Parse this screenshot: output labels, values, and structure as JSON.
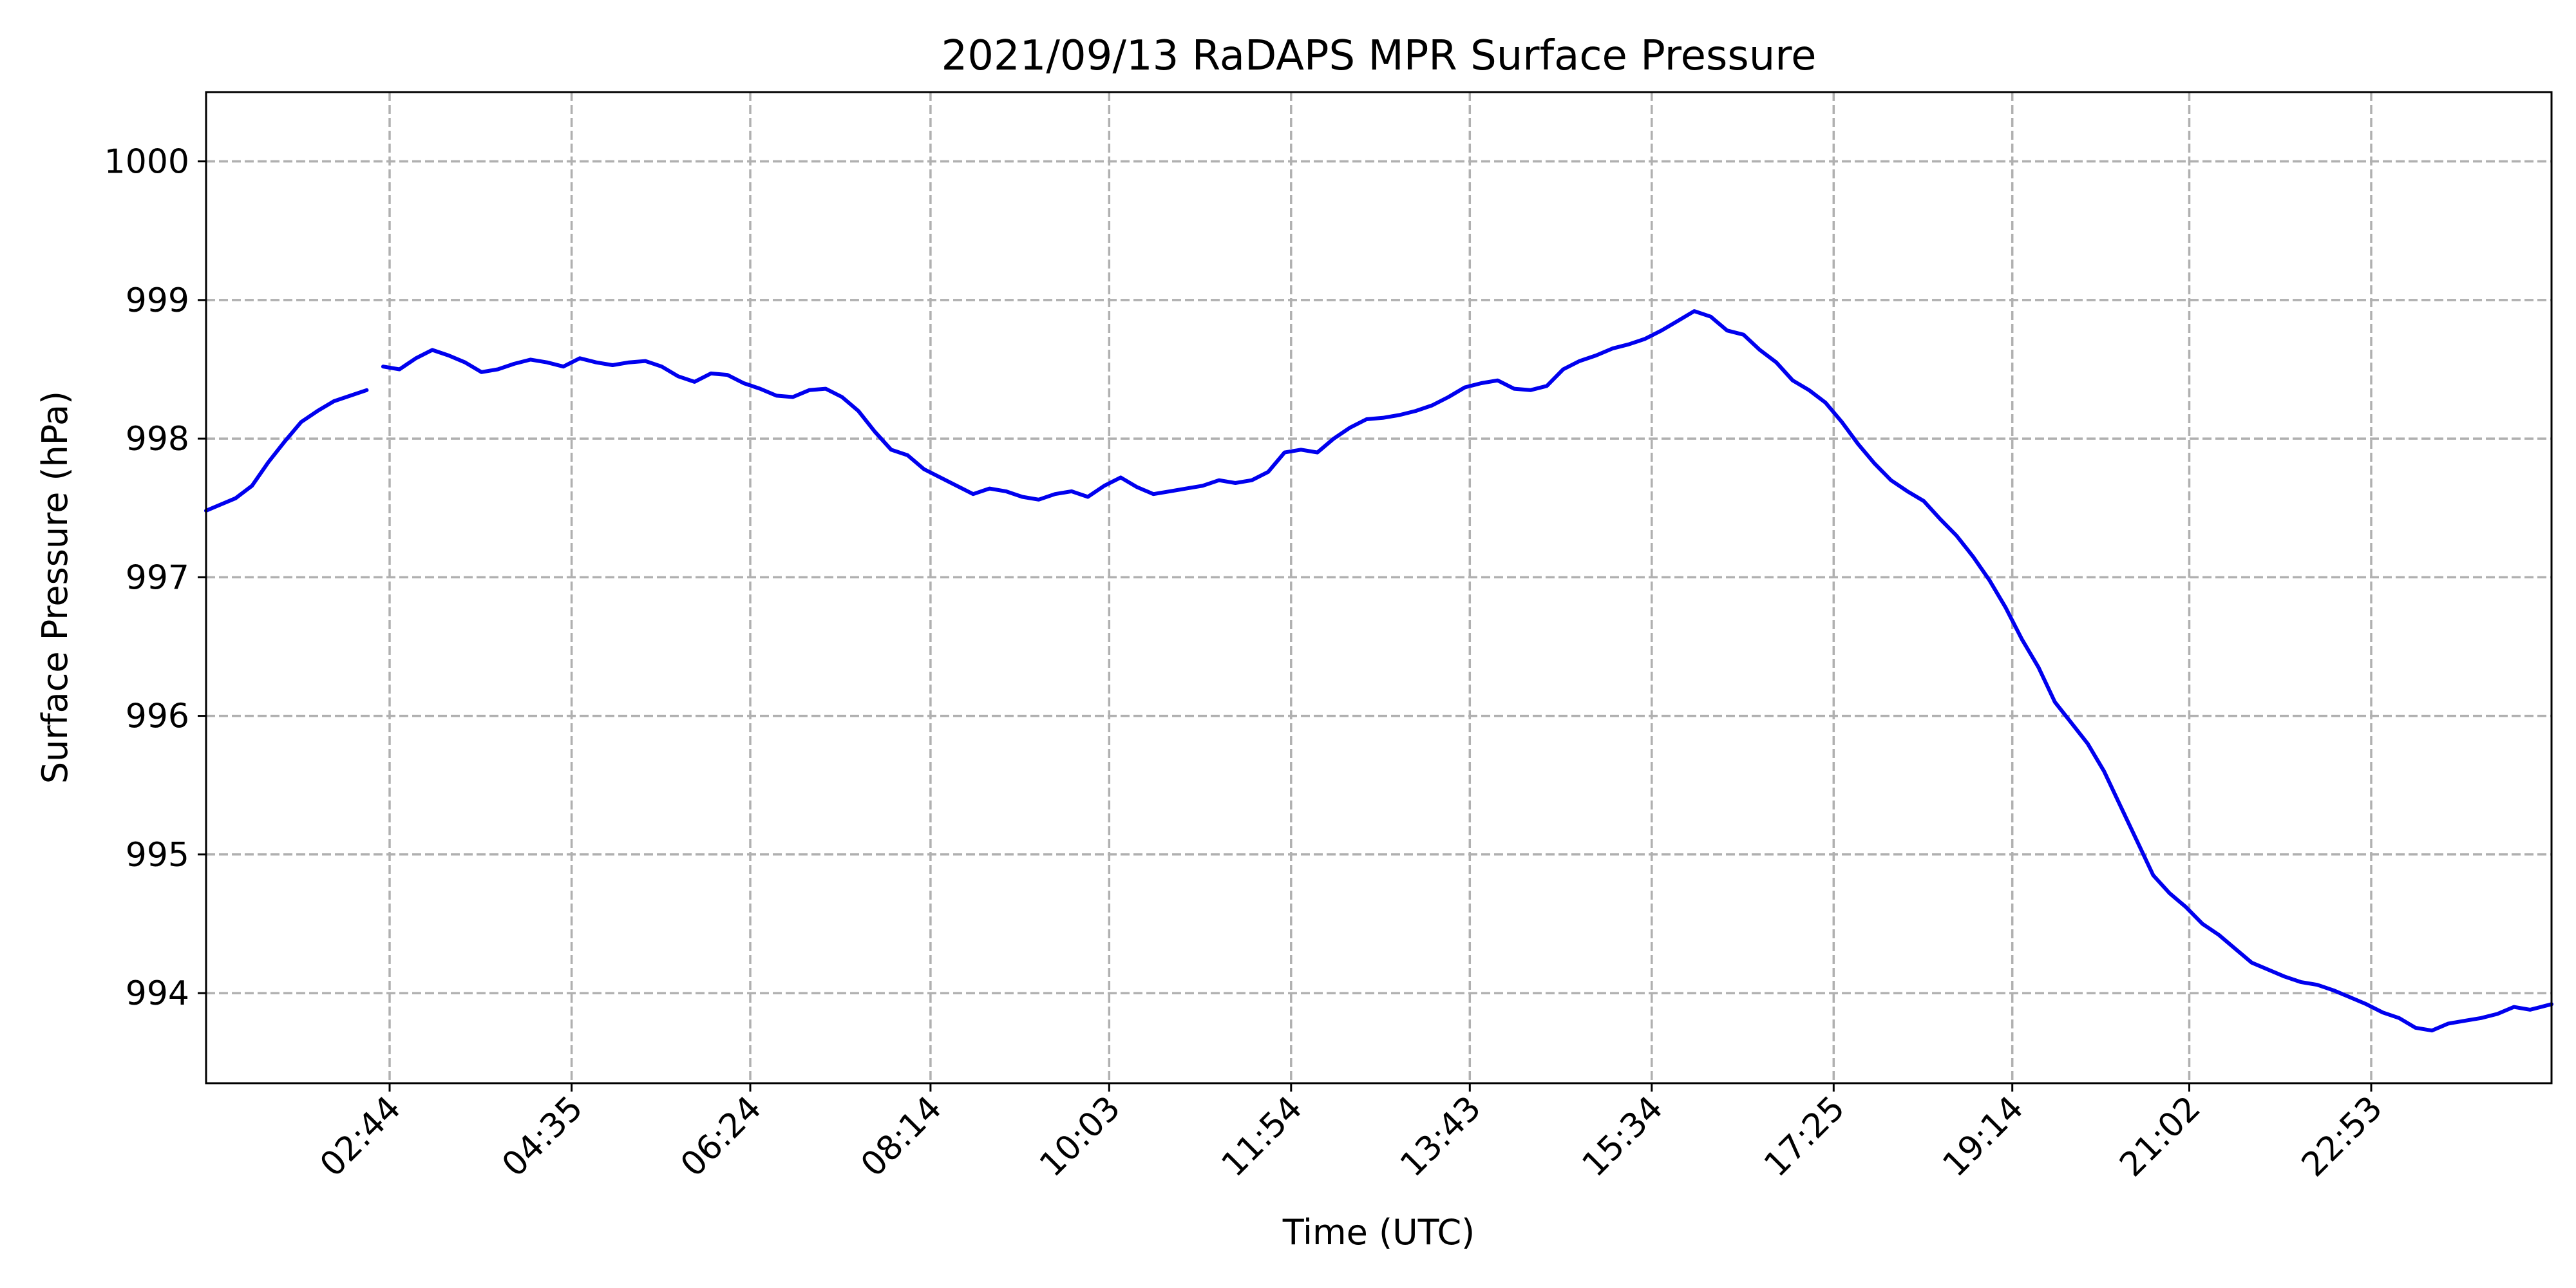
{
  "chart_data": {
    "type": "line",
    "title": "2021/09/13 RaDAPS MPR Surface Pressure",
    "xlabel": "Time (UTC)",
    "ylabel": "Surface Pressure (hPa)",
    "x_unit": "UTC time of day",
    "xlim": [
      "00:52",
      "24:43"
    ],
    "ylim": [
      993.35,
      1000.5
    ],
    "x_ticks": [
      "02:44",
      "04:35",
      "06:24",
      "08:14",
      "10:03",
      "11:54",
      "13:43",
      "15:34",
      "17:25",
      "19:14",
      "21:02",
      "22:53"
    ],
    "y_ticks": [
      994,
      995,
      996,
      997,
      998,
      999,
      1000
    ],
    "grid": true,
    "line_color": "#0000ee",
    "series": [
      {
        "segments": [
          {
            "x": [
              "00:52",
              "01:00",
              "01:10",
              "01:20",
              "01:30",
              "01:40",
              "01:50",
              "02:00",
              "02:10",
              "02:20",
              "02:30"
            ],
            "y": [
              997.48,
              997.52,
              997.57,
              997.66,
              997.83,
              997.98,
              998.12,
              998.2,
              998.27,
              998.31,
              998.35
            ]
          },
          {
            "x": [
              "02:40",
              "02:50",
              "03:00",
              "03:10",
              "03:20",
              "03:30",
              "03:40",
              "03:50",
              "04:00",
              "04:10",
              "04:20",
              "04:30",
              "04:40",
              "04:50",
              "05:00",
              "05:10",
              "05:20",
              "05:30",
              "05:40",
              "05:50",
              "06:00",
              "06:10",
              "06:20",
              "06:30",
              "06:40",
              "06:50",
              "07:00",
              "07:10",
              "07:20",
              "07:30",
              "07:40",
              "07:50",
              "08:00",
              "08:10",
              "08:20",
              "08:30",
              "08:40",
              "08:50",
              "09:00",
              "09:10",
              "09:20",
              "09:30",
              "09:40",
              "09:50",
              "10:00",
              "10:10",
              "10:20",
              "10:30",
              "10:40",
              "10:50",
              "11:00",
              "11:10",
              "11:20",
              "11:30",
              "11:40",
              "11:50",
              "12:00",
              "12:10",
              "12:20",
              "12:30",
              "12:40",
              "12:50",
              "13:00",
              "13:10",
              "13:20",
              "13:30",
              "13:40",
              "13:50",
              "14:00",
              "14:10",
              "14:20",
              "14:30",
              "14:40",
              "14:50",
              "15:00",
              "15:10",
              "15:20",
              "15:30",
              "15:40",
              "15:50",
              "16:00",
              "16:10",
              "16:20",
              "16:30",
              "16:40",
              "16:50",
              "17:00",
              "17:10",
              "17:20",
              "17:30",
              "17:40",
              "17:50",
              "18:00",
              "18:10",
              "18:20",
              "18:30",
              "18:40",
              "18:50",
              "19:00",
              "19:10",
              "19:20",
              "19:30",
              "19:40",
              "19:50",
              "20:00",
              "20:10",
              "20:20",
              "20:30",
              "20:40",
              "20:50",
              "21:00",
              "21:10",
              "21:20",
              "21:30",
              "21:40",
              "21:50",
              "22:00",
              "22:10",
              "22:20",
              "22:30",
              "22:40",
              "22:50",
              "23:00",
              "23:10",
              "23:20",
              "23:30",
              "23:40",
              "23:50",
              "24:00",
              "24:10",
              "24:20",
              "24:30",
              "24:43"
            ],
            "y": [
              998.52,
              998.5,
              998.58,
              998.64,
              998.6,
              998.55,
              998.48,
              998.5,
              998.54,
              998.57,
              998.55,
              998.52,
              998.58,
              998.55,
              998.53,
              998.55,
              998.56,
              998.52,
              998.45,
              998.41,
              998.47,
              998.46,
              998.4,
              998.36,
              998.31,
              998.3,
              998.35,
              998.36,
              998.3,
              998.2,
              998.05,
              997.92,
              997.88,
              997.78,
              997.72,
              997.66,
              997.6,
              997.64,
              997.62,
              997.58,
              997.56,
              997.6,
              997.62,
              997.58,
              997.66,
              997.72,
              997.65,
              997.6,
              997.62,
              997.64,
              997.66,
              997.7,
              997.68,
              997.7,
              997.76,
              997.9,
              997.92,
              997.9,
              998.0,
              998.08,
              998.14,
              998.15,
              998.17,
              998.2,
              998.24,
              998.3,
              998.37,
              998.4,
              998.42,
              998.36,
              998.35,
              998.38,
              998.5,
              998.56,
              998.6,
              998.65,
              998.68,
              998.72,
              998.78,
              998.85,
              998.92,
              998.88,
              998.78,
              998.75,
              998.64,
              998.55,
              998.42,
              998.35,
              998.26,
              998.12,
              997.96,
              997.82,
              997.7,
              997.62,
              997.55,
              997.42,
              997.3,
              997.15,
              996.98,
              996.78,
              996.55,
              996.35,
              996.1,
              995.95,
              995.8,
              995.6,
              995.35,
              995.1,
              994.85,
              994.72,
              994.62,
              994.5,
              994.42,
              994.32,
              994.22,
              994.17,
              994.12,
              994.08,
              994.06,
              994.02,
              993.97,
              993.92,
              993.86,
              993.82,
              993.75,
              993.73,
              993.78,
              993.8,
              993.82,
              993.85,
              993.9,
              993.88,
              993.92
            ]
          }
        ]
      }
    ]
  }
}
